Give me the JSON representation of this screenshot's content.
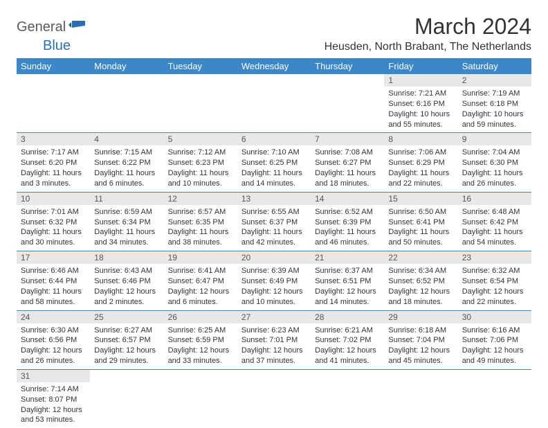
{
  "logo": {
    "text1": "General",
    "text2": "Blue"
  },
  "title": "March 2024",
  "location": "Heusden, North Brabant, The Netherlands",
  "colors": {
    "header_bg": "#3b87c8",
    "header_text": "#ffffff",
    "daynum_bg": "#e8e8e8",
    "border": "#3b87c8",
    "logo_gray": "#5a5a5a",
    "logo_blue": "#2a6fb5"
  },
  "day_headers": [
    "Sunday",
    "Monday",
    "Tuesday",
    "Wednesday",
    "Thursday",
    "Friday",
    "Saturday"
  ],
  "weeks": [
    [
      null,
      null,
      null,
      null,
      null,
      {
        "n": "1",
        "sunrise": "Sunrise: 7:21 AM",
        "sunset": "Sunset: 6:16 PM",
        "daylight": "Daylight: 10 hours and 55 minutes."
      },
      {
        "n": "2",
        "sunrise": "Sunrise: 7:19 AM",
        "sunset": "Sunset: 6:18 PM",
        "daylight": "Daylight: 10 hours and 59 minutes."
      }
    ],
    [
      {
        "n": "3",
        "sunrise": "Sunrise: 7:17 AM",
        "sunset": "Sunset: 6:20 PM",
        "daylight": "Daylight: 11 hours and 3 minutes."
      },
      {
        "n": "4",
        "sunrise": "Sunrise: 7:15 AM",
        "sunset": "Sunset: 6:22 PM",
        "daylight": "Daylight: 11 hours and 6 minutes."
      },
      {
        "n": "5",
        "sunrise": "Sunrise: 7:12 AM",
        "sunset": "Sunset: 6:23 PM",
        "daylight": "Daylight: 11 hours and 10 minutes."
      },
      {
        "n": "6",
        "sunrise": "Sunrise: 7:10 AM",
        "sunset": "Sunset: 6:25 PM",
        "daylight": "Daylight: 11 hours and 14 minutes."
      },
      {
        "n": "7",
        "sunrise": "Sunrise: 7:08 AM",
        "sunset": "Sunset: 6:27 PM",
        "daylight": "Daylight: 11 hours and 18 minutes."
      },
      {
        "n": "8",
        "sunrise": "Sunrise: 7:06 AM",
        "sunset": "Sunset: 6:29 PM",
        "daylight": "Daylight: 11 hours and 22 minutes."
      },
      {
        "n": "9",
        "sunrise": "Sunrise: 7:04 AM",
        "sunset": "Sunset: 6:30 PM",
        "daylight": "Daylight: 11 hours and 26 minutes."
      }
    ],
    [
      {
        "n": "10",
        "sunrise": "Sunrise: 7:01 AM",
        "sunset": "Sunset: 6:32 PM",
        "daylight": "Daylight: 11 hours and 30 minutes."
      },
      {
        "n": "11",
        "sunrise": "Sunrise: 6:59 AM",
        "sunset": "Sunset: 6:34 PM",
        "daylight": "Daylight: 11 hours and 34 minutes."
      },
      {
        "n": "12",
        "sunrise": "Sunrise: 6:57 AM",
        "sunset": "Sunset: 6:35 PM",
        "daylight": "Daylight: 11 hours and 38 minutes."
      },
      {
        "n": "13",
        "sunrise": "Sunrise: 6:55 AM",
        "sunset": "Sunset: 6:37 PM",
        "daylight": "Daylight: 11 hours and 42 minutes."
      },
      {
        "n": "14",
        "sunrise": "Sunrise: 6:52 AM",
        "sunset": "Sunset: 6:39 PM",
        "daylight": "Daylight: 11 hours and 46 minutes."
      },
      {
        "n": "15",
        "sunrise": "Sunrise: 6:50 AM",
        "sunset": "Sunset: 6:41 PM",
        "daylight": "Daylight: 11 hours and 50 minutes."
      },
      {
        "n": "16",
        "sunrise": "Sunrise: 6:48 AM",
        "sunset": "Sunset: 6:42 PM",
        "daylight": "Daylight: 11 hours and 54 minutes."
      }
    ],
    [
      {
        "n": "17",
        "sunrise": "Sunrise: 6:46 AM",
        "sunset": "Sunset: 6:44 PM",
        "daylight": "Daylight: 11 hours and 58 minutes."
      },
      {
        "n": "18",
        "sunrise": "Sunrise: 6:43 AM",
        "sunset": "Sunset: 6:46 PM",
        "daylight": "Daylight: 12 hours and 2 minutes."
      },
      {
        "n": "19",
        "sunrise": "Sunrise: 6:41 AM",
        "sunset": "Sunset: 6:47 PM",
        "daylight": "Daylight: 12 hours and 6 minutes."
      },
      {
        "n": "20",
        "sunrise": "Sunrise: 6:39 AM",
        "sunset": "Sunset: 6:49 PM",
        "daylight": "Daylight: 12 hours and 10 minutes."
      },
      {
        "n": "21",
        "sunrise": "Sunrise: 6:37 AM",
        "sunset": "Sunset: 6:51 PM",
        "daylight": "Daylight: 12 hours and 14 minutes."
      },
      {
        "n": "22",
        "sunrise": "Sunrise: 6:34 AM",
        "sunset": "Sunset: 6:52 PM",
        "daylight": "Daylight: 12 hours and 18 minutes."
      },
      {
        "n": "23",
        "sunrise": "Sunrise: 6:32 AM",
        "sunset": "Sunset: 6:54 PM",
        "daylight": "Daylight: 12 hours and 22 minutes."
      }
    ],
    [
      {
        "n": "24",
        "sunrise": "Sunrise: 6:30 AM",
        "sunset": "Sunset: 6:56 PM",
        "daylight": "Daylight: 12 hours and 26 minutes."
      },
      {
        "n": "25",
        "sunrise": "Sunrise: 6:27 AM",
        "sunset": "Sunset: 6:57 PM",
        "daylight": "Daylight: 12 hours and 29 minutes."
      },
      {
        "n": "26",
        "sunrise": "Sunrise: 6:25 AM",
        "sunset": "Sunset: 6:59 PM",
        "daylight": "Daylight: 12 hours and 33 minutes."
      },
      {
        "n": "27",
        "sunrise": "Sunrise: 6:23 AM",
        "sunset": "Sunset: 7:01 PM",
        "daylight": "Daylight: 12 hours and 37 minutes."
      },
      {
        "n": "28",
        "sunrise": "Sunrise: 6:21 AM",
        "sunset": "Sunset: 7:02 PM",
        "daylight": "Daylight: 12 hours and 41 minutes."
      },
      {
        "n": "29",
        "sunrise": "Sunrise: 6:18 AM",
        "sunset": "Sunset: 7:04 PM",
        "daylight": "Daylight: 12 hours and 45 minutes."
      },
      {
        "n": "30",
        "sunrise": "Sunrise: 6:16 AM",
        "sunset": "Sunset: 7:06 PM",
        "daylight": "Daylight: 12 hours and 49 minutes."
      }
    ],
    [
      {
        "n": "31",
        "sunrise": "Sunrise: 7:14 AM",
        "sunset": "Sunset: 8:07 PM",
        "daylight": "Daylight: 12 hours and 53 minutes."
      },
      null,
      null,
      null,
      null,
      null,
      null
    ]
  ]
}
